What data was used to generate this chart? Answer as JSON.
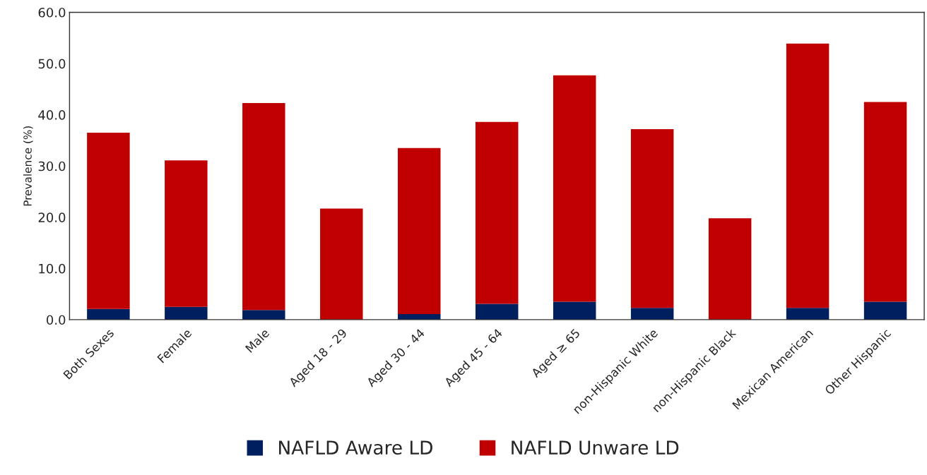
{
  "chart_data": {
    "type": "bar",
    "stacked": true,
    "ylabel": "Prevalence (%)",
    "categories": [
      "Both Sexes",
      "Female",
      "Male",
      "Aged 18 - 29",
      "Aged 30 - 44",
      "Aged 45 - 64",
      "Aged ≥ 65",
      "non-Hispanic White",
      "non-Hispanic Black",
      "Mexican American",
      "Other Hispanic"
    ],
    "series": [
      {
        "name": "NAFLD Aware LD",
        "color": "#001f5f",
        "values": [
          2.1,
          2.5,
          1.9,
          0,
          1.1,
          3.1,
          3.5,
          2.3,
          0,
          2.3,
          3.5
        ]
      },
      {
        "name": "NAFLD Unware LD",
        "color": "#c00000",
        "values": [
          34.4,
          28.6,
          40.4,
          21.7,
          32.4,
          35.5,
          44.2,
          34.9,
          19.8,
          51.6,
          39.0
        ]
      }
    ],
    "ylim": [
      0,
      60
    ],
    "yticks": [
      {
        "value": 0,
        "label": "0.0"
      },
      {
        "value": 10,
        "label": "10.0"
      },
      {
        "value": 20,
        "label": "20.0"
      },
      {
        "value": 30,
        "label": "30.0"
      },
      {
        "value": 40,
        "label": "40.0"
      },
      {
        "value": 50,
        "label": "50.0"
      },
      {
        "value": 60,
        "label": "60.0"
      }
    ],
    "grid": false,
    "legend": "bottom"
  }
}
